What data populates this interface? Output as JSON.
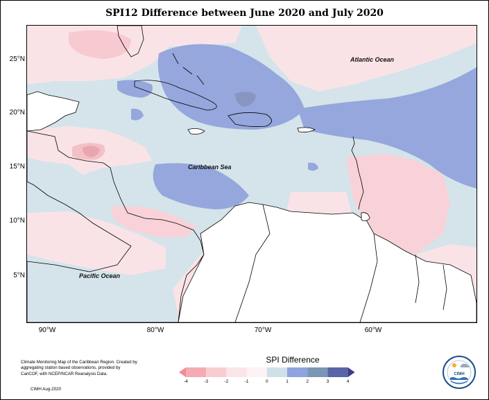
{
  "title": "SPI12 Difference between June 2020 and July 2020",
  "axes": {
    "lat_labels": [
      "25°N",
      "20°N",
      "15°N",
      "10°N",
      "5°N"
    ],
    "lon_labels": [
      "90°W",
      "80°W",
      "70°W",
      "60°W"
    ]
  },
  "ocean_labels": {
    "atlantic": "Atlantic Ocean",
    "caribbean": "Caribbean Sea",
    "pacific": "Pacific Ocean"
  },
  "legend": {
    "title": "SPI Difference",
    "ticks": [
      "-4",
      "-3",
      "-2",
      "-1",
      "0",
      "1",
      "2",
      "3",
      "4"
    ],
    "colors": [
      "#f48a92",
      "#f6aab1",
      "#f8cdd2",
      "#fbe5e8",
      "#fdf3f4",
      "#cfe0e8",
      "#8fa4de",
      "#7c97b5",
      "#5965a7",
      "#3d3f86"
    ]
  },
  "credit": {
    "text": "Climate Monitoring Map of the Caribbean Region. Created by aggregating station based observations, provided by CariCOF, with NCEP/NCAR Reanalysis Data.",
    "date": "CIMH Aug-2020"
  },
  "logo": {
    "text": "CIMH"
  }
}
